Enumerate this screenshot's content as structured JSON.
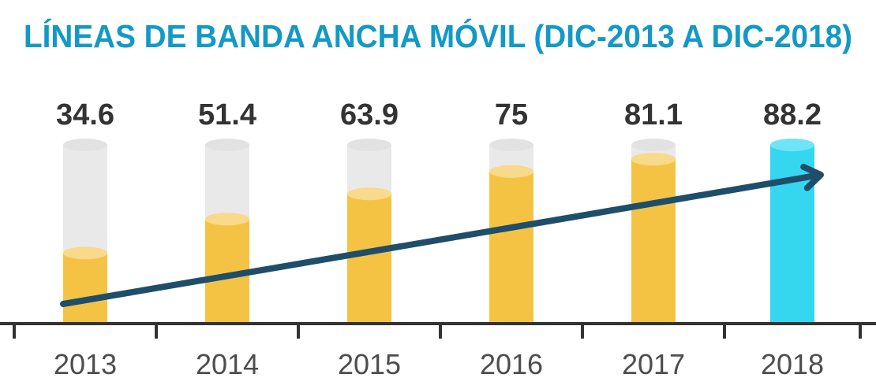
{
  "chart_data": {
    "type": "bar",
    "title": "LÍNEAS DE BANDA ANCHA MÓVIL (DIC-2013 A DIC-2018)",
    "categories": [
      "2013",
      "2014",
      "2015",
      "2016",
      "2017",
      "2018"
    ],
    "values": [
      34.6,
      51.4,
      63.9,
      75,
      81.1,
      88.2
    ],
    "value_labels": [
      "34.6",
      "51.4",
      "63.9",
      "75",
      "81.1",
      "88.2"
    ],
    "ylim": [
      0,
      88.2
    ],
    "grid": false,
    "legend": "none",
    "trend_arrow": true
  },
  "colors": {
    "title": "#1399c6",
    "bar": "#f5c344",
    "bar_top": "#f9d98a",
    "bar_track": "#e9e9e9",
    "bar_highlight": "#35d6f0",
    "bar_highlight_top": "#6fe4f6",
    "arrow": "#1f4e6b",
    "axis": "#333333"
  }
}
